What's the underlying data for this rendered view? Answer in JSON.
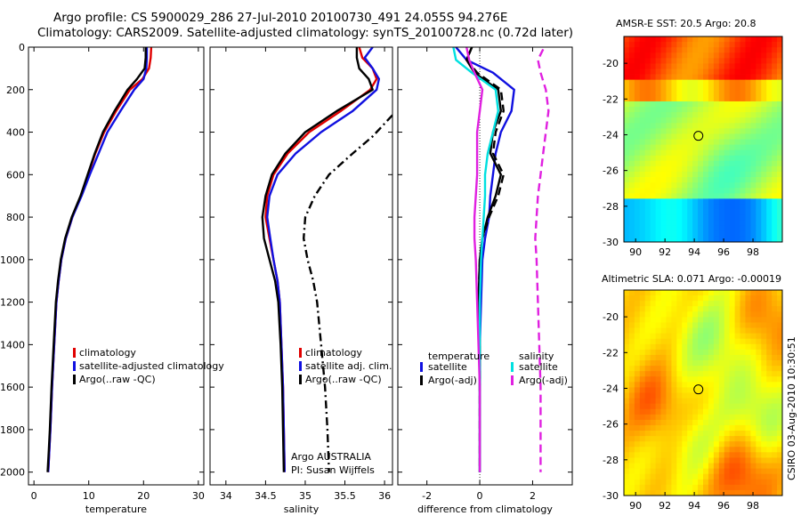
{
  "header": {
    "title_line1": "Argo profile: CS 5900029_286 27-Jul-2010 20100730_491 24.055S 94.276E",
    "title_line2": "Climatology: CARS2009. Satellite-adjusted climatology: synTS_20100728.nc (0.72d later)"
  },
  "side_label": "CSIRO 03-Aug-2010 10:30:51",
  "chart_data": [
    {
      "id": "temperature",
      "type": "line",
      "xlabel": "temperature",
      "ylabel": "",
      "xlim": [
        -1,
        31
      ],
      "ylim": [
        2060,
        0
      ],
      "xticks": [
        0,
        10,
        20,
        30
      ],
      "yticks": [
        0,
        200,
        400,
        600,
        800,
        1000,
        1200,
        1400,
        1600,
        1800,
        2000
      ],
      "legend_position": "lower-center",
      "legend": [
        {
          "label": "climatology",
          "color": "#e00000"
        },
        {
          "label": "satellite-adjusted climatology",
          "color": "#1010e0"
        },
        {
          "label": "Argo(..raw -QC)",
          "color": "#000000"
        }
      ],
      "series": [
        {
          "name": "climatology",
          "color": "#e00000",
          "style": "solid",
          "x": [
            21.4,
            21.3,
            21.0,
            19.8,
            17.5,
            15.0,
            12.8,
            11.2,
            9.9,
            8.6,
            7.0,
            5.8,
            5.0,
            4.5,
            4.1,
            3.7,
            3.3,
            3.0,
            2.8,
            2.6
          ],
          "y": [
            0,
            50,
            100,
            150,
            200,
            300,
            400,
            500,
            600,
            700,
            800,
            900,
            1000,
            1100,
            1200,
            1400,
            1600,
            1800,
            1900,
            2000
          ]
        },
        {
          "name": "satellite-adjusted climatology",
          "color": "#1010e0",
          "style": "solid",
          "x": [
            20.6,
            20.6,
            20.5,
            20.0,
            18.3,
            15.8,
            13.4,
            11.8,
            10.2,
            8.7,
            7.0,
            5.8,
            5.0,
            4.5,
            4.1,
            3.7,
            3.3,
            3.0,
            2.8,
            2.6
          ],
          "y": [
            0,
            50,
            100,
            150,
            200,
            300,
            400,
            500,
            600,
            700,
            800,
            900,
            1000,
            1100,
            1200,
            1400,
            1600,
            1800,
            1900,
            2000
          ]
        },
        {
          "name": "Argo(..raw -QC)",
          "color": "#000000",
          "style": "solid",
          "x": [
            20.4,
            20.4,
            20.2,
            18.8,
            17.1,
            14.7,
            12.6,
            11.1,
            9.8,
            8.5,
            6.9,
            5.7,
            4.9,
            4.4,
            4.0,
            3.6,
            3.2,
            2.9,
            2.7,
            2.5
          ],
          "y": [
            0,
            50,
            100,
            150,
            200,
            300,
            400,
            500,
            600,
            700,
            800,
            900,
            1000,
            1100,
            1200,
            1400,
            1600,
            1800,
            1900,
            2000
          ]
        }
      ]
    },
    {
      "id": "salinity",
      "type": "line",
      "xlabel": "salinity",
      "ylabel": "",
      "xlim": [
        33.8,
        36.1
      ],
      "ylim": [
        2060,
        0
      ],
      "xticks": [
        34,
        34.5,
        35,
        35.5,
        36
      ],
      "yticks": [
        0,
        200,
        400,
        600,
        800,
        1000,
        1200,
        1400,
        1600,
        1800,
        2000
      ],
      "legend_position": "lower-right",
      "legend": [
        {
          "label": "climatology",
          "color": "#e00000"
        },
        {
          "label": "satellite adj. clim.",
          "color": "#1010e0"
        },
        {
          "label": "Argo(..raw -QC)",
          "color": "#000000"
        }
      ],
      "annotation_line1": "Argo AUSTRALIA",
      "annotation_line2": "PI: Susan Wijffels",
      "series": [
        {
          "name": "climatology",
          "color": "#e00000",
          "style": "solid",
          "x": [
            35.68,
            35.72,
            35.85,
            35.9,
            35.82,
            35.45,
            35.05,
            34.78,
            34.6,
            34.52,
            34.5,
            34.55,
            34.6,
            34.65,
            34.68,
            34.7,
            34.72,
            34.73,
            34.74
          ],
          "y": [
            0,
            50,
            100,
            150,
            200,
            300,
            400,
            500,
            600,
            700,
            800,
            900,
            1000,
            1100,
            1200,
            1400,
            1600,
            1800,
            2000
          ]
        },
        {
          "name": "satellite adj. clim.",
          "color": "#1010e0",
          "style": "solid",
          "x": [
            35.85,
            35.75,
            35.85,
            35.93,
            35.9,
            35.6,
            35.2,
            34.88,
            34.65,
            34.55,
            34.52,
            34.56,
            34.6,
            34.65,
            34.68,
            34.7,
            34.72,
            34.73,
            34.74
          ],
          "y": [
            0,
            50,
            100,
            150,
            200,
            300,
            400,
            500,
            600,
            700,
            800,
            900,
            1000,
            1100,
            1200,
            1400,
            1600,
            1800,
            2000
          ]
        },
        {
          "name": "Argo(..raw -QC)",
          "color": "#000000",
          "style": "solid",
          "x": [
            35.65,
            35.65,
            35.68,
            35.8,
            35.85,
            35.4,
            35.0,
            34.75,
            34.58,
            34.5,
            34.46,
            34.48,
            34.55,
            34.62,
            34.66,
            34.69,
            34.71,
            34.72,
            34.73
          ],
          "y": [
            0,
            50,
            100,
            150,
            200,
            300,
            400,
            500,
            600,
            700,
            800,
            900,
            1000,
            1100,
            1200,
            1400,
            1600,
            1800,
            2000
          ]
        },
        {
          "name": "",
          "color": "#000000",
          "style": "dashdot",
          "x": [
            36.1,
            35.85,
            35.6,
            35.3,
            35.12,
            35.0,
            34.98,
            35.03,
            35.1,
            35.15,
            35.2,
            35.25,
            35.28,
            35.3
          ],
          "y": [
            320,
            420,
            500,
            600,
            700,
            800,
            900,
            1000,
            1100,
            1200,
            1400,
            1600,
            1800,
            2000
          ]
        }
      ]
    },
    {
      "id": "difference",
      "type": "line",
      "xlabel": "difference from climatology",
      "ylabel": "",
      "xlim": [
        -3.1,
        3.5
      ],
      "ylim": [
        2060,
        0
      ],
      "xticks": [
        -2,
        0,
        2
      ],
      "yticks": [
        0,
        200,
        400,
        600,
        800,
        1000,
        1200,
        1400,
        1600,
        1800,
        2000
      ],
      "legend_position": "lower-center",
      "legend_temperature_title": "temperature",
      "legend_salinity_title": "salinity",
      "legend_temperature": [
        {
          "label": "satellite",
          "color": "#1010e0"
        },
        {
          "label": "Argo(-adj)",
          "color": "#000000"
        }
      ],
      "legend_salinity": [
        {
          "label": "satellite",
          "color": "#00e0e0"
        },
        {
          "label": "Argo(-adj)",
          "color": "#e020e0"
        }
      ],
      "series": [
        {
          "name": "temperature satellite",
          "color": "#1010e0",
          "style": "solid",
          "x": [
            -0.9,
            -0.5,
            0.5,
            1.3,
            1.2,
            0.8,
            0.6,
            0.5,
            0.4,
            0.35,
            0.2,
            0.1,
            0.05,
            0.0,
            0.0,
            0.0,
            0.0
          ],
          "y": [
            0,
            60,
            120,
            200,
            300,
            400,
            500,
            600,
            700,
            800,
            900,
            1000,
            1200,
            1400,
            1600,
            1800,
            2000
          ]
        },
        {
          "name": "temperature Argo(-adj)",
          "color": "#000000",
          "style": "solid",
          "x": [
            -0.3,
            -0.5,
            -0.2,
            0.7,
            0.8,
            0.5,
            0.4,
            0.8,
            0.6,
            0.3,
            0.1,
            0.0,
            -0.05,
            0.0,
            0.0,
            0.0,
            0.0
          ],
          "y": [
            0,
            60,
            120,
            200,
            300,
            400,
            500,
            600,
            700,
            800,
            900,
            1000,
            1200,
            1400,
            1600,
            1800,
            2000
          ]
        },
        {
          "name": "temperature Argo raw",
          "color": "#000000",
          "style": "dashed",
          "x": [
            -0.3,
            -0.5,
            -0.1,
            0.8,
            0.9,
            0.6,
            0.5,
            0.9,
            0.7,
            0.35,
            0.1,
            0.0,
            -0.05,
            0.0,
            0.0,
            0.0,
            0.0
          ],
          "y": [
            0,
            60,
            120,
            200,
            300,
            400,
            500,
            600,
            700,
            800,
            900,
            1000,
            1200,
            1400,
            1600,
            1800,
            2000
          ]
        },
        {
          "name": "salinity satellite",
          "color": "#00e0e0",
          "style": "solid",
          "x": [
            -1.0,
            -0.9,
            -0.3,
            0.6,
            0.7,
            0.5,
            0.3,
            0.2,
            0.2,
            0.15,
            0.1,
            0.05,
            0.0,
            0.0,
            0.0,
            0.0,
            0.0
          ],
          "y": [
            0,
            60,
            120,
            200,
            300,
            400,
            500,
            600,
            700,
            800,
            900,
            1000,
            1200,
            1400,
            1600,
            1800,
            2000
          ]
        },
        {
          "name": "salinity Argo(-adj)",
          "color": "#e020e0",
          "style": "solid",
          "x": [
            -0.5,
            -0.4,
            -0.2,
            0.1,
            0.0,
            -0.1,
            -0.1,
            -0.1,
            -0.15,
            -0.2,
            -0.2,
            -0.15,
            -0.1,
            -0.05,
            0.0,
            0.0,
            0.0
          ],
          "y": [
            0,
            60,
            120,
            200,
            300,
            400,
            500,
            600,
            700,
            800,
            900,
            1000,
            1200,
            1400,
            1600,
            1800,
            2000
          ]
        },
        {
          "name": "salinity Argo raw",
          "color": "#e020e0",
          "style": "dashed",
          "x": [
            2.4,
            2.2,
            2.3,
            2.5,
            2.6,
            2.5,
            2.4,
            2.3,
            2.2,
            2.15,
            2.1,
            2.15,
            2.2,
            2.25,
            2.3,
            2.3,
            2.3
          ],
          "y": [
            10,
            60,
            120,
            200,
            300,
            400,
            500,
            600,
            700,
            800,
            900,
            1000,
            1200,
            1400,
            1600,
            1800,
            2000
          ]
        }
      ]
    },
    {
      "id": "sst_map",
      "type": "heatmap",
      "title": "AMSR-E SST: 20.5 Argo: 20.8",
      "xlim": [
        89.2,
        100.0
      ],
      "ylim": [
        -30,
        -18.5
      ],
      "xticks": [
        90,
        92,
        94,
        96,
        98
      ],
      "yticks": [
        -20,
        -22,
        -24,
        -26,
        -28,
        -30
      ],
      "marker": {
        "x": 94.28,
        "y": -24.06
      }
    },
    {
      "id": "sla_map",
      "type": "heatmap",
      "title": "Altimetric SLA: 0.071 Argo: -0.00019",
      "xlim": [
        89.2,
        100.0
      ],
      "ylim": [
        -30,
        -18.5
      ],
      "xticks": [
        90,
        92,
        94,
        96,
        98
      ],
      "yticks": [
        -20,
        -22,
        -24,
        -26,
        -28,
        -30
      ],
      "marker": {
        "x": 94.28,
        "y": -24.06
      }
    }
  ]
}
